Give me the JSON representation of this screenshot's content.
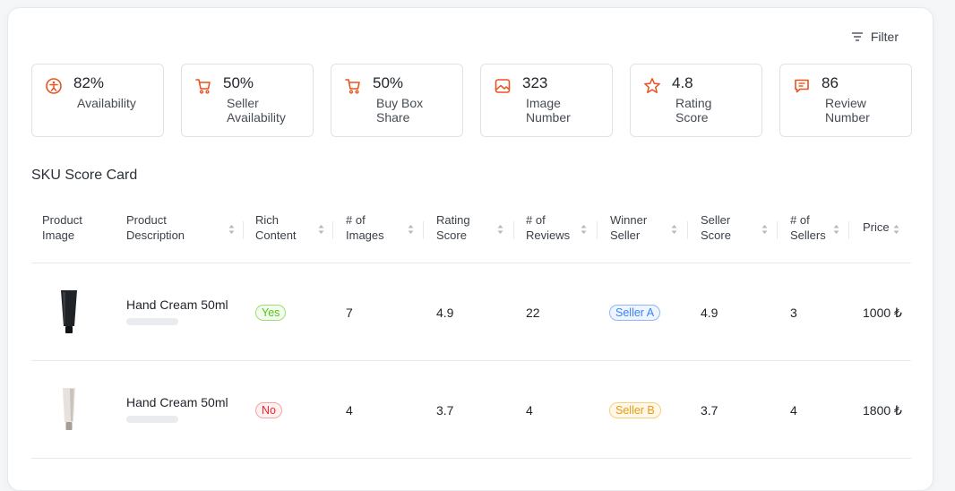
{
  "filter": {
    "label": "Filter"
  },
  "metrics": [
    {
      "icon": "accessibility-icon",
      "value": "82%",
      "label": "Availability"
    },
    {
      "icon": "cart-icon",
      "value": "50%",
      "label": "Seller\nAvailability"
    },
    {
      "icon": "cart-icon",
      "value": "50%",
      "label": "Buy Box\nShare"
    },
    {
      "icon": "image-icon",
      "value": "323",
      "label": "Image\nNumber"
    },
    {
      "icon": "star-icon",
      "value": "4.8",
      "label": "Rating\nScore"
    },
    {
      "icon": "message-icon",
      "value": "86",
      "label": "Review\nNumber"
    }
  ],
  "section_title": "SKU Score Card",
  "columns": [
    "Product\nImage",
    "Product\nDescription",
    "Rich\nContent",
    "# of\nImages",
    "Rating\nScore",
    "# of\nReviews",
    "Winner\nSeller",
    "Seller\nScore",
    "# of\nSellers",
    "Price"
  ],
  "rows": [
    {
      "product": "Hand Cream 50ml",
      "rich": "Yes",
      "images": "7",
      "rating": "4.9",
      "reviews": "22",
      "seller": "Seller A",
      "seller_score": "4.9",
      "sellers": "3",
      "price": "1000 ₺"
    },
    {
      "product": "Hand Cream 50ml",
      "rich": "No",
      "images": "4",
      "rating": "3.7",
      "reviews": "4",
      "seller": "Seller B",
      "seller_score": "3.7",
      "sellers": "4",
      "price": "1800 ₺"
    }
  ],
  "colors": {
    "accent": "#e8531f"
  }
}
